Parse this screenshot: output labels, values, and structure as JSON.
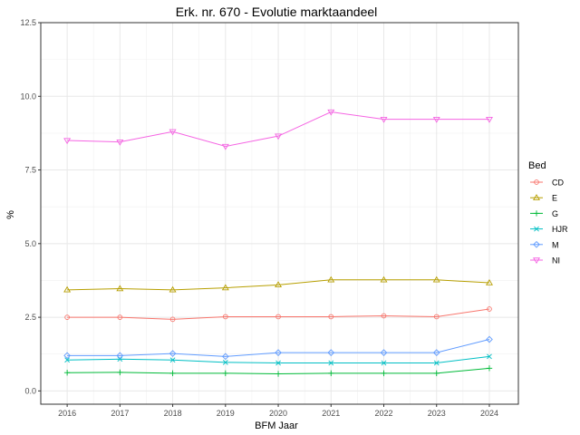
{
  "chart_data": {
    "type": "line",
    "title": "Erk. nr. 670 - Evolutie marktaandeel",
    "xlabel": "BFM Jaar",
    "ylabel": "%",
    "x": [
      2016,
      2017,
      2018,
      2019,
      2020,
      2021,
      2022,
      2023,
      2024
    ],
    "xlim": [
      2015.5,
      2024.55
    ],
    "ylim": [
      -0.45,
      12.5
    ],
    "yticks": [
      0.0,
      2.5,
      5.0,
      7.5,
      10.0,
      12.5
    ],
    "ytick_labels": [
      "0.0",
      "2.5",
      "5.0",
      "7.5",
      "10.0",
      "12.5"
    ],
    "grid": true,
    "legend_title": "Bed",
    "legend_position": "right",
    "series": [
      {
        "name": "CD",
        "color": "#F8766D",
        "marker": "circle",
        "values": [
          2.5,
          2.5,
          2.43,
          2.52,
          2.52,
          2.52,
          2.55,
          2.52,
          2.78
        ]
      },
      {
        "name": "E",
        "color": "#B79F00",
        "marker": "triangle-up",
        "values": [
          3.43,
          3.47,
          3.43,
          3.5,
          3.6,
          3.77,
          3.77,
          3.77,
          3.67
        ]
      },
      {
        "name": "G",
        "color": "#00BA38",
        "marker": "plus",
        "values": [
          0.62,
          0.63,
          0.6,
          0.6,
          0.58,
          0.6,
          0.6,
          0.6,
          0.77
        ]
      },
      {
        "name": "HJR",
        "color": "#00BFC4",
        "marker": "cross",
        "values": [
          1.05,
          1.08,
          1.05,
          0.97,
          0.95,
          0.95,
          0.95,
          0.95,
          1.17
        ]
      },
      {
        "name": "M",
        "color": "#619CFF",
        "marker": "diamond",
        "values": [
          1.2,
          1.2,
          1.27,
          1.17,
          1.3,
          1.3,
          1.3,
          1.3,
          1.75
        ]
      },
      {
        "name": "NI",
        "color": "#F564E3",
        "marker": "triangle-down",
        "values": [
          8.5,
          8.45,
          8.8,
          8.3,
          8.65,
          9.47,
          9.22,
          9.22,
          9.22
        ]
      }
    ]
  }
}
